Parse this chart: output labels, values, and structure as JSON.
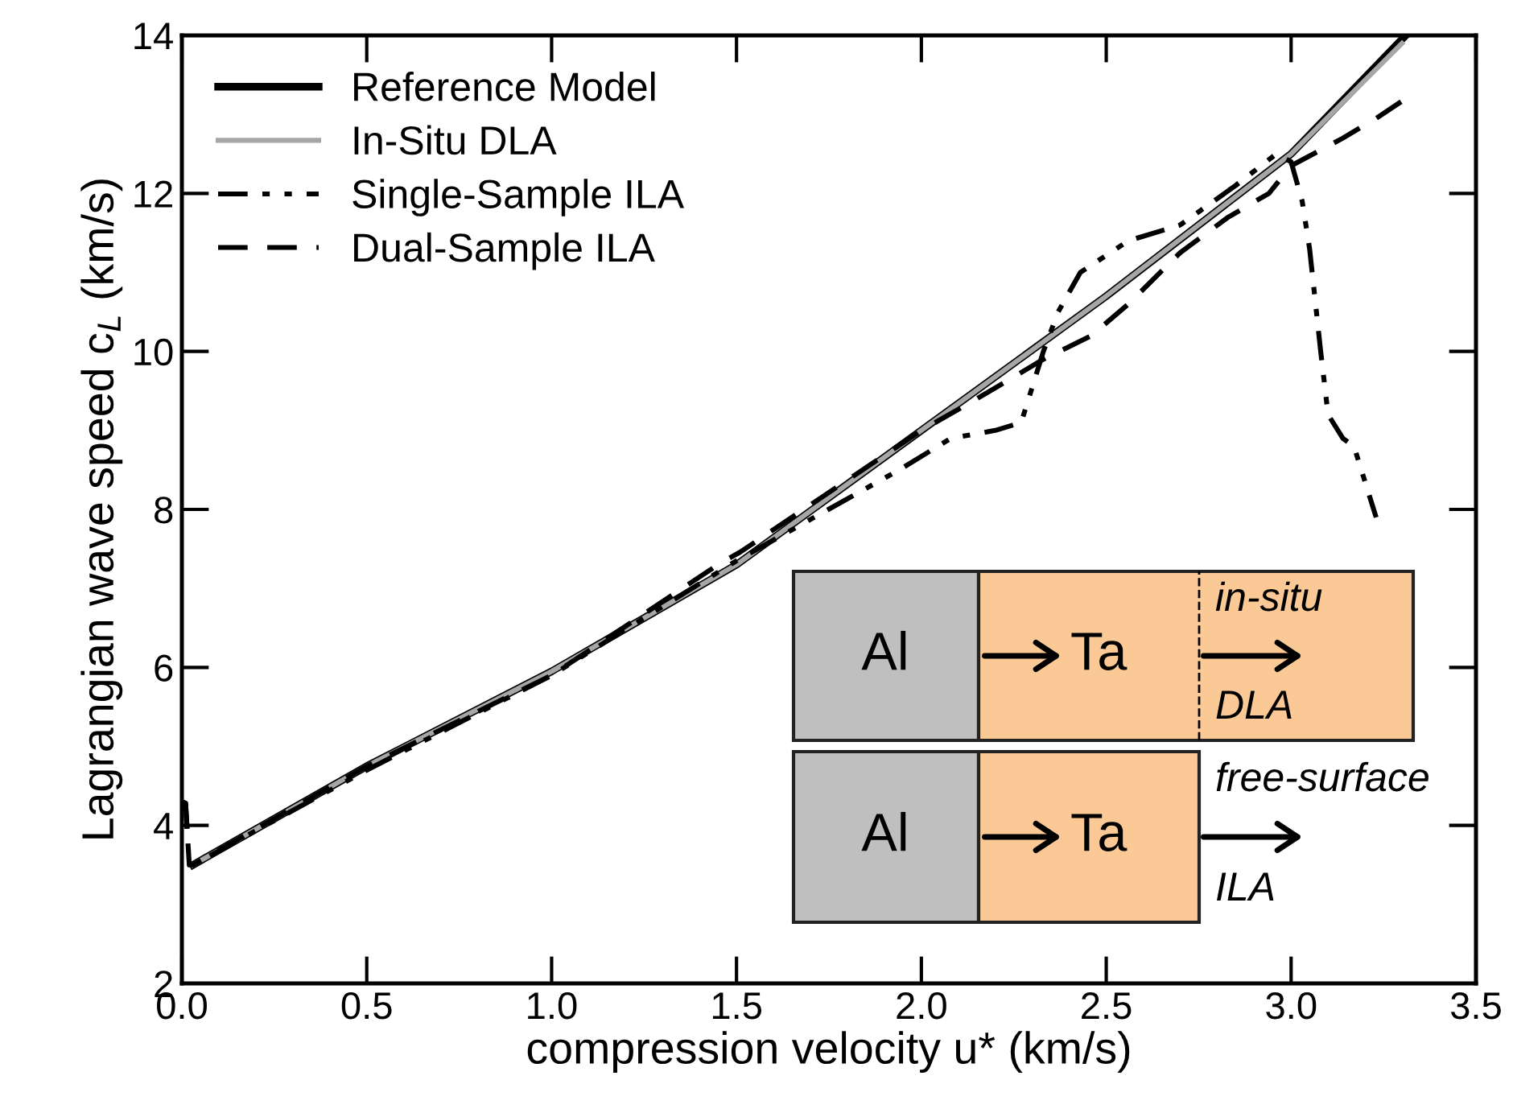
{
  "chart_data": {
    "type": "line",
    "xlabel": "compression velocity u* (km/s)",
    "ylabel": "Lagrangian wave speed c$_{L}$ (km/s)",
    "xlim": [
      0,
      3.5
    ],
    "ylim": [
      2,
      14
    ],
    "xticks": [
      {
        "value": 0,
        "label": "0.0"
      },
      0.5,
      {
        "value": 1,
        "label": "1.0"
      },
      1.5,
      {
        "value": 2,
        "label": "2.0"
      },
      2.5,
      {
        "value": 3,
        "label": "3.0"
      },
      3.5
    ],
    "yticks": [
      2,
      4,
      6,
      8,
      10,
      12,
      14
    ],
    "grid": false,
    "legend": "top left",
    "series": [
      {
        "name": "Reference Model",
        "color": "#000000",
        "line_style": "solid",
        "x": [
          0.03,
          0.5,
          1.0,
          1.5,
          2.0,
          2.5,
          3.0,
          3.31
        ],
        "values": [
          3.5,
          4.75,
          5.95,
          7.3,
          9.0,
          10.7,
          12.5,
          14.0
        ]
      },
      {
        "name": "In-Situ DLA",
        "color": "#a6a6a6",
        "line_style": "solid",
        "x": [
          0.03,
          0.5,
          1.0,
          1.5,
          2.0,
          2.5,
          3.0,
          3.3
        ],
        "values": [
          3.5,
          4.75,
          5.95,
          7.3,
          9.0,
          10.7,
          12.5,
          13.9
        ]
      },
      {
        "name": "Single-Sample ILA",
        "color": "#000000",
        "line_style": "dashdotdot",
        "x": [
          0.0,
          0.01,
          0.02,
          0.03,
          0.5,
          1.0,
          1.5,
          1.94,
          2.08,
          2.2,
          2.27,
          2.33,
          2.37,
          2.43,
          2.56,
          2.7,
          2.85,
          2.96,
          3.0,
          3.03,
          3.05,
          3.08,
          3.1,
          3.14,
          3.17,
          3.23
        ],
        "values": [
          4.3,
          4.28,
          3.5,
          3.5,
          4.7,
          5.9,
          7.35,
          8.5,
          8.9,
          9.0,
          9.1,
          10.0,
          10.5,
          11.0,
          11.4,
          11.6,
          12.1,
          12.5,
          12.4,
          11.9,
          11.3,
          10.0,
          9.2,
          8.9,
          8.8,
          7.9
        ]
      },
      {
        "name": "Dual-Sample ILA",
        "color": "#000000",
        "line_style": "dashed",
        "x": [
          0.0,
          0.01,
          0.02,
          0.03,
          0.5,
          1.0,
          1.45,
          1.51,
          2.0,
          2.15,
          2.33,
          2.46,
          2.56,
          2.7,
          2.83,
          2.94,
          3.0,
          3.14,
          3.23,
          3.31
        ],
        "values": [
          4.3,
          4.28,
          3.5,
          3.5,
          4.75,
          5.9,
          7.3,
          7.46,
          9.0,
          9.4,
          9.9,
          10.2,
          10.6,
          11.25,
          11.7,
          12.0,
          12.35,
          12.7,
          12.95,
          13.2
        ]
      }
    ],
    "annotations": [
      "Al",
      "Ta",
      "in-situ",
      "DLA",
      "Al",
      "Ta",
      "free-surface",
      "ILA"
    ]
  }
}
